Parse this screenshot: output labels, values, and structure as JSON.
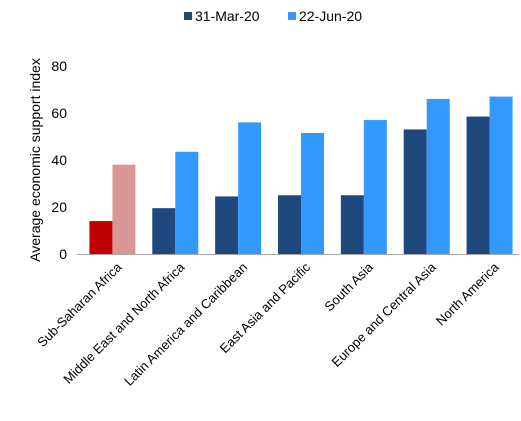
{
  "chart_data": {
    "type": "bar",
    "title": "",
    "xlabel": "",
    "ylabel": "Average economic support index",
    "ylim": [
      0,
      80
    ],
    "yticks": [
      0,
      20,
      40,
      60,
      80
    ],
    "grid": false,
    "legend_position": "top-center",
    "categories": [
      "Sub-Saharan Africa",
      "Middle East and North Africa",
      "Latin America and Caribbean",
      "East Asia and Pacific",
      "South Asia",
      "Europe and Central Asia",
      "North America"
    ],
    "series": [
      {
        "name": "31-Mar-20",
        "color": "#1f497d",
        "values": [
          14,
          19.5,
          24.5,
          25,
          25,
          53,
          58.5
        ]
      },
      {
        "name": "22-Jun-20",
        "color": "#3399ff",
        "values": [
          38,
          43.5,
          56,
          51.5,
          57,
          66,
          67
        ]
      }
    ],
    "highlight": {
      "category": "Sub-Saharan Africa",
      "colors": [
        "#c00000",
        "#d99694"
      ]
    }
  }
}
